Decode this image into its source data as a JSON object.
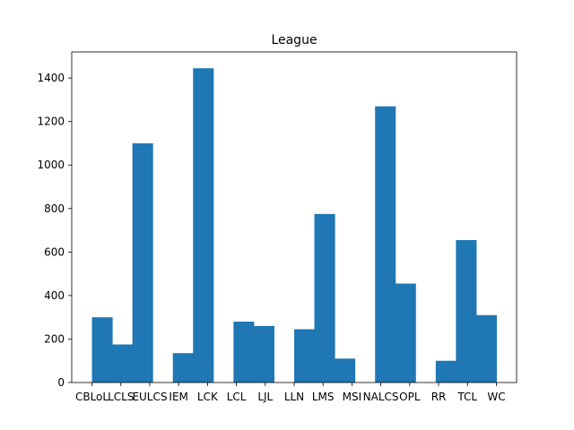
{
  "chart_data": {
    "type": "bar",
    "title": "League",
    "xlabel": "",
    "ylabel": "",
    "categories": [
      "CBLoL",
      "LCLS",
      "EULCS",
      "IEM",
      "LCK",
      "LCL",
      "LJL",
      "LLN",
      "LMS",
      "MSI",
      "NALCS",
      "OPL",
      "RR",
      "TCL",
      "WC"
    ],
    "bins": [
      {
        "from": 0.0,
        "to": 0.7,
        "count": 300
      },
      {
        "from": 0.7,
        "to": 1.4,
        "count": 175
      },
      {
        "from": 1.4,
        "to": 2.1,
        "count": 1100
      },
      {
        "from": 2.1,
        "to": 2.8,
        "count": 0
      },
      {
        "from": 2.8,
        "to": 3.5,
        "count": 135
      },
      {
        "from": 3.5,
        "to": 4.2,
        "count": 1445
      },
      {
        "from": 4.2,
        "to": 4.9,
        "count": 0
      },
      {
        "from": 4.9,
        "to": 5.6,
        "count": 280
      },
      {
        "from": 5.6,
        "to": 6.3,
        "count": 260
      },
      {
        "from": 6.3,
        "to": 7.0,
        "count": 0
      },
      {
        "from": 7.0,
        "to": 7.7,
        "count": 245
      },
      {
        "from": 7.7,
        "to": 8.4,
        "count": 775
      },
      {
        "from": 8.4,
        "to": 9.1,
        "count": 110
      },
      {
        "from": 9.1,
        "to": 9.8,
        "count": 0
      },
      {
        "from": 9.8,
        "to": 10.5,
        "count": 1270
      },
      {
        "from": 10.5,
        "to": 11.2,
        "count": 455
      },
      {
        "from": 11.2,
        "to": 11.9,
        "count": 0
      },
      {
        "from": 11.9,
        "to": 12.6,
        "count": 100
      },
      {
        "from": 12.6,
        "to": 13.3,
        "count": 655
      },
      {
        "from": 13.3,
        "to": 14.0,
        "count": 310
      }
    ],
    "xlim": [
      -0.7,
      14.7
    ],
    "ylim": [
      0,
      1520
    ],
    "yticks": [
      0,
      200,
      400,
      600,
      800,
      1000,
      1200,
      1400
    ],
    "bar_color": "#1f77b4",
    "grid": false
  }
}
